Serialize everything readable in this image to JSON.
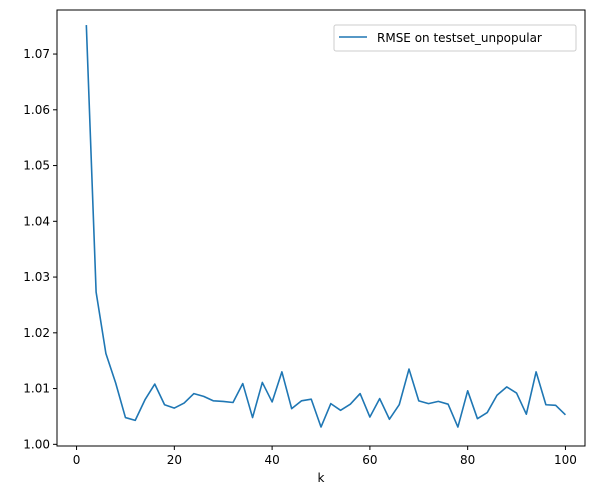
{
  "chart_data": {
    "type": "line",
    "title": "",
    "xlabel": "k",
    "ylabel": "",
    "xlim": [
      -4,
      104
    ],
    "ylim": [
      0.9997,
      1.0779
    ],
    "xticks": [
      0,
      20,
      40,
      60,
      80,
      100
    ],
    "yticks": [
      1.0,
      1.01,
      1.02,
      1.03,
      1.04,
      1.05,
      1.06,
      1.07
    ],
    "xtick_labels": [
      "0",
      "20",
      "40",
      "60",
      "80",
      "100"
    ],
    "ytick_labels": [
      "1.00",
      "1.01",
      "1.02",
      "1.03",
      "1.04",
      "1.05",
      "1.06",
      "1.07"
    ],
    "grid": false,
    "legend_position": "top-right",
    "series": [
      {
        "name": "RMSE on testset_unpopular",
        "color": "#1f77b4",
        "x": [
          2,
          4,
          6,
          8,
          10,
          12,
          14,
          16,
          18,
          20,
          22,
          24,
          26,
          28,
          30,
          32,
          34,
          36,
          38,
          40,
          42,
          44,
          46,
          48,
          50,
          52,
          54,
          56,
          58,
          60,
          62,
          64,
          66,
          68,
          70,
          72,
          74,
          76,
          78,
          80,
          82,
          84,
          86,
          88,
          90,
          92,
          94,
          96,
          98,
          100
        ],
        "y": [
          1.0752,
          1.0273,
          1.0163,
          1.011,
          1.0048,
          1.0043,
          1.008,
          1.0108,
          1.0071,
          1.0065,
          1.0074,
          1.0091,
          1.0086,
          1.0078,
          1.0077,
          1.0075,
          1.0109,
          1.0048,
          1.0111,
          1.0076,
          1.013,
          1.0064,
          1.0078,
          1.0081,
          1.0031,
          1.0073,
          1.0061,
          1.0072,
          1.0091,
          1.0049,
          1.0082,
          1.0045,
          1.0071,
          1.0135,
          1.0078,
          1.0073,
          1.0077,
          1.0072,
          1.0031,
          1.0096,
          1.0046,
          1.0057,
          1.0088,
          1.0103,
          1.0092,
          1.0054,
          1.013,
          1.0071,
          1.007,
          1.0053
        ]
      }
    ]
  }
}
